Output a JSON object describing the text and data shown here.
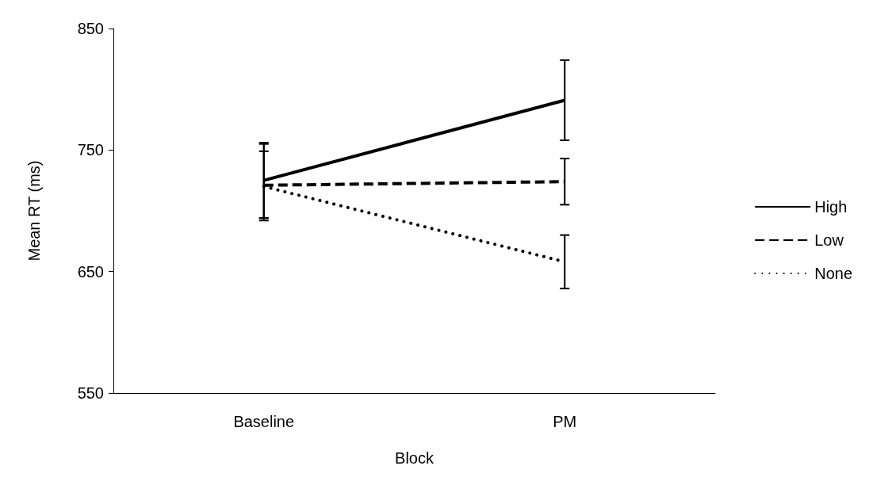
{
  "chart_data": {
    "type": "line",
    "xlabel": "Block",
    "ylabel": "Mean RT (ms)",
    "categories": [
      "Baseline",
      "PM"
    ],
    "ylim": [
      550,
      850
    ],
    "yticks": [
      550,
      650,
      750,
      850
    ],
    "grid": false,
    "legend": "right",
    "marker": "none",
    "series": [
      {
        "name": "High",
        "color": "#000000",
        "line_style": "solid",
        "values": [
          725,
          791
        ],
        "errors": [
          31,
          33
        ]
      },
      {
        "name": "Low",
        "color": "#000000",
        "line_style": "dashed",
        "values": [
          721,
          724
        ],
        "errors": [
          [
            694,
            749
          ],
          19
        ]
      },
      {
        "name": "None",
        "color": "#000000",
        "line_style": "dotted",
        "values": [
          720,
          658
        ],
        "errors": [
          [
            692,
            755
          ],
          22
        ]
      }
    ]
  }
}
